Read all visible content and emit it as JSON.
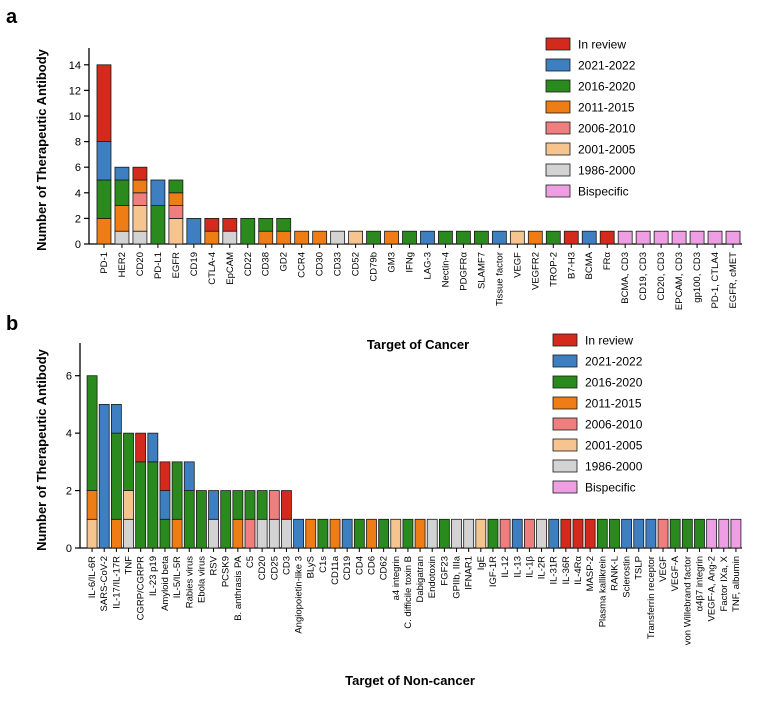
{
  "palette": {
    "In review": "#d42a1e",
    "2021-2022": "#3d7fc1",
    "2016-2020": "#2b8a1e",
    "2011-2015": "#ee7d16",
    "2006-2010": "#ef7f7f",
    "2001-2005": "#f6c58f",
    "1986-2000": "#d3d3d3",
    "Bispecific": "#ee9fe3"
  },
  "chart_data": [
    {
      "panel": "a",
      "type": "bar",
      "stacked": true,
      "title": "",
      "xlabel": "Target of Cancer",
      "ylabel": "Number of Therapeutic Antibody",
      "ylim": [
        0,
        15
      ],
      "yticks": [
        0,
        2,
        4,
        6,
        8,
        10,
        12,
        14
      ],
      "legend": [
        "In review",
        "2021-2022",
        "2016-2020",
        "2011-2015",
        "2006-2010",
        "2001-2005",
        "1986-2000",
        "Bispecific"
      ],
      "legend_position": "top-right",
      "categories": [
        "PD-1",
        "HER2",
        "CD20",
        "PD-L1",
        "EGFR",
        "CD19",
        "CTLA-4",
        "EpCAM",
        "CD22",
        "CD38",
        "GD2",
        "CCR4",
        "CD30",
        "CD33",
        "CD52",
        "CD79b",
        "GM3",
        "IFNg",
        "LAG-3",
        "Nectin-4",
        "PDGFRα",
        "SLAMF7",
        "Tissue factor",
        "VEGF",
        "VEGFR2",
        "TROP-2",
        "B7-H3",
        "BCMA",
        "FRα",
        "BCMA, CD3",
        "CD19, CD3",
        "CD20, CD3",
        "EPCAM, CD3",
        "gp100, CD3",
        "PD-1, CTLA4",
        "EGFR, cMET"
      ],
      "series": [
        {
          "name": "1986-2000",
          "values": [
            0,
            1,
            1,
            0,
            0,
            0,
            0,
            1,
            0,
            0,
            0,
            0,
            0,
            1,
            0,
            0,
            0,
            0,
            0,
            0,
            0,
            0,
            0,
            0,
            0,
            0,
            0,
            0,
            0,
            0,
            0,
            0,
            0,
            0,
            0,
            0
          ]
        },
        {
          "name": "2001-2005",
          "values": [
            0,
            0,
            2,
            0,
            2,
            0,
            0,
            0,
            0,
            0,
            0,
            0,
            0,
            0,
            1,
            0,
            0,
            0,
            0,
            0,
            0,
            0,
            0,
            1,
            0,
            0,
            0,
            0,
            0,
            0,
            0,
            0,
            0,
            0,
            0,
            0
          ]
        },
        {
          "name": "2006-2010",
          "values": [
            0,
            0,
            1,
            0,
            1,
            0,
            0,
            0,
            0,
            0,
            0,
            0,
            0,
            0,
            0,
            0,
            0,
            0,
            0,
            0,
            0,
            0,
            0,
            0,
            0,
            0,
            0,
            0,
            0,
            0,
            0,
            0,
            0,
            0,
            0,
            0
          ]
        },
        {
          "name": "2011-2015",
          "values": [
            2,
            2,
            1,
            0,
            1,
            0,
            1,
            0,
            0,
            1,
            1,
            1,
            1,
            0,
            0,
            0,
            1,
            0,
            0,
            0,
            0,
            0,
            0,
            0,
            1,
            0,
            0,
            0,
            0,
            0,
            0,
            0,
            0,
            0,
            0,
            0
          ]
        },
        {
          "name": "2016-2020",
          "values": [
            3,
            2,
            0,
            3,
            1,
            0,
            0,
            0,
            2,
            1,
            1,
            0,
            0,
            0,
            0,
            1,
            0,
            1,
            0,
            1,
            1,
            1,
            0,
            0,
            0,
            1,
            0,
            0,
            0,
            0,
            0,
            0,
            0,
            0,
            0,
            0
          ]
        },
        {
          "name": "2021-2022",
          "values": [
            3,
            1,
            0,
            2,
            0,
            2,
            0,
            0,
            0,
            0,
            0,
            0,
            0,
            0,
            0,
            0,
            0,
            0,
            1,
            0,
            0,
            0,
            1,
            0,
            0,
            0,
            0,
            1,
            0,
            0,
            0,
            0,
            0,
            0,
            0,
            0
          ]
        },
        {
          "name": "In review",
          "values": [
            6,
            0,
            1,
            0,
            0,
            0,
            1,
            1,
            0,
            0,
            0,
            0,
            0,
            0,
            0,
            0,
            0,
            0,
            0,
            0,
            0,
            0,
            0,
            0,
            0,
            0,
            1,
            0,
            1,
            0,
            0,
            0,
            0,
            0,
            0,
            0
          ]
        },
        {
          "name": "Bispecific",
          "values": [
            0,
            0,
            0,
            0,
            0,
            0,
            0,
            0,
            0,
            0,
            0,
            0,
            0,
            0,
            0,
            0,
            0,
            0,
            0,
            0,
            0,
            0,
            0,
            0,
            0,
            0,
            0,
            0,
            0,
            1,
            1,
            1,
            1,
            1,
            1,
            1
          ]
        }
      ]
    },
    {
      "panel": "b",
      "type": "bar",
      "stacked": true,
      "title": "",
      "xlabel": "Target of Non-cancer",
      "ylabel": "Number of Therapeutic Antibody",
      "ylim": [
        0,
        7
      ],
      "yticks": [
        0,
        2,
        4,
        6
      ],
      "legend": [
        "In review",
        "2021-2022",
        "2016-2020",
        "2011-2015",
        "2006-2010",
        "2001-2005",
        "1986-2000",
        "Bispecific"
      ],
      "legend_position": "top-right",
      "categories": [
        "IL-6/IL-6R",
        "SARS-CoV-2",
        "IL-17/IL-17R",
        "TNF",
        "CGRP/CGRPR",
        "IL-23 p19",
        "Amyloid beta",
        "IL-5/IL-5R",
        "Rabies virus",
        "Ebola virus",
        "RSV",
        "PCSK9",
        "B. anthrasis PA",
        "C5",
        "CD20",
        "CD25",
        "CD3",
        "Angiopoietin-like 3",
        "BLyS",
        "C1s",
        "CD11a",
        "CD19",
        "CD4",
        "CD6",
        "CD62",
        "a4 integrin",
        "C. difficile toxin B",
        "Dabigatran",
        "Endotoxin",
        "FGF23",
        "GPIIb, IIIa",
        "IFNAR1",
        "IgE",
        "IGF-1R",
        "IL-12",
        "IL-13",
        "IL-1β",
        "IL-2R",
        "IL-31R",
        "IL-36R",
        "IL-4Rα",
        "MASP-2",
        "Plasma kallikrein",
        "RANK-L",
        "Sclerostin",
        "TSLP",
        "Transferrin receptor",
        "VEGF",
        "VEGF-A",
        "von Willebrand factor",
        "α4β7 integrin",
        "VEGF-A, Ang-2",
        "Factor IXa, X",
        "TNF, albumin"
      ],
      "series": [
        {
          "name": "1986-2000",
          "values": [
            0,
            0,
            0,
            1,
            0,
            0,
            0,
            0,
            0,
            0,
            1,
            0,
            0,
            0,
            1,
            1,
            1,
            0,
            0,
            0,
            0,
            0,
            0,
            0,
            0,
            0,
            0,
            0,
            1,
            0,
            1,
            1,
            0,
            0,
            0,
            0,
            0,
            1,
            0,
            0,
            0,
            0,
            0,
            0,
            0,
            0,
            0,
            0,
            0,
            0,
            0,
            0,
            0,
            0
          ]
        },
        {
          "name": "2001-2005",
          "values": [
            1,
            0,
            0,
            1,
            0,
            0,
            0,
            0,
            0,
            0,
            0,
            0,
            0,
            0,
            0,
            0,
            0,
            0,
            0,
            0,
            0,
            0,
            0,
            0,
            0,
            1,
            0,
            0,
            0,
            0,
            0,
            0,
            1,
            0,
            0,
            0,
            0,
            0,
            0,
            0,
            0,
            0,
            0,
            0,
            0,
            0,
            0,
            0,
            0,
            0,
            0,
            0,
            0,
            0
          ]
        },
        {
          "name": "2006-2010",
          "values": [
            0,
            0,
            0,
            0,
            0,
            0,
            0,
            0,
            0,
            0,
            0,
            0,
            0,
            1,
            0,
            1,
            0,
            0,
            0,
            0,
            0,
            0,
            0,
            0,
            0,
            0,
            0,
            0,
            0,
            0,
            0,
            0,
            0,
            0,
            1,
            0,
            1,
            0,
            0,
            0,
            0,
            0,
            0,
            0,
            0,
            0,
            0,
            1,
            0,
            0,
            0,
            0,
            0,
            0
          ]
        },
        {
          "name": "2011-2015",
          "values": [
            1,
            0,
            1,
            0,
            0,
            0,
            0,
            1,
            0,
            0,
            0,
            0,
            1,
            0,
            0,
            0,
            0,
            0,
            1,
            0,
            1,
            0,
            0,
            1,
            0,
            0,
            0,
            1,
            0,
            0,
            0,
            0,
            0,
            0,
            0,
            0,
            0,
            0,
            0,
            0,
            0,
            0,
            0,
            0,
            0,
            0,
            0,
            0,
            0,
            0,
            0,
            0,
            0,
            0
          ]
        },
        {
          "name": "2016-2020",
          "values": [
            4,
            0,
            3,
            2,
            3,
            3,
            1,
            2,
            2,
            2,
            0,
            2,
            1,
            1,
            1,
            0,
            0,
            0,
            0,
            1,
            0,
            0,
            1,
            0,
            1,
            0,
            1,
            0,
            0,
            1,
            0,
            0,
            0,
            1,
            0,
            0,
            0,
            0,
            0,
            0,
            0,
            0,
            1,
            1,
            0,
            0,
            0,
            0,
            1,
            1,
            1,
            0,
            0,
            0
          ]
        },
        {
          "name": "2021-2022",
          "values": [
            0,
            5,
            1,
            0,
            0,
            1,
            1,
            0,
            1,
            0,
            1,
            0,
            0,
            0,
            0,
            0,
            0,
            1,
            0,
            0,
            0,
            1,
            0,
            0,
            0,
            0,
            0,
            0,
            0,
            0,
            0,
            0,
            0,
            0,
            0,
            1,
            0,
            0,
            1,
            0,
            0,
            0,
            0,
            0,
            1,
            1,
            1,
            0,
            0,
            0,
            0,
            0,
            0,
            0
          ]
        },
        {
          "name": "In review",
          "values": [
            0,
            0,
            0,
            0,
            1,
            0,
            1,
            0,
            0,
            0,
            0,
            0,
            0,
            0,
            0,
            0,
            1,
            0,
            0,
            0,
            0,
            0,
            0,
            0,
            0,
            0,
            0,
            0,
            0,
            0,
            0,
            0,
            0,
            0,
            0,
            0,
            0,
            0,
            0,
            1,
            1,
            1,
            0,
            0,
            0,
            0,
            0,
            0,
            0,
            0,
            0,
            0,
            0,
            0
          ]
        },
        {
          "name": "Bispecific",
          "values": [
            0,
            0,
            0,
            0,
            0,
            0,
            0,
            0,
            0,
            0,
            0,
            0,
            0,
            0,
            0,
            0,
            0,
            0,
            0,
            0,
            0,
            0,
            0,
            0,
            0,
            0,
            0,
            0,
            0,
            0,
            0,
            0,
            0,
            0,
            0,
            0,
            0,
            0,
            0,
            0,
            0,
            0,
            0,
            0,
            0,
            0,
            0,
            0,
            0,
            0,
            0,
            1,
            1,
            1
          ]
        }
      ]
    }
  ]
}
